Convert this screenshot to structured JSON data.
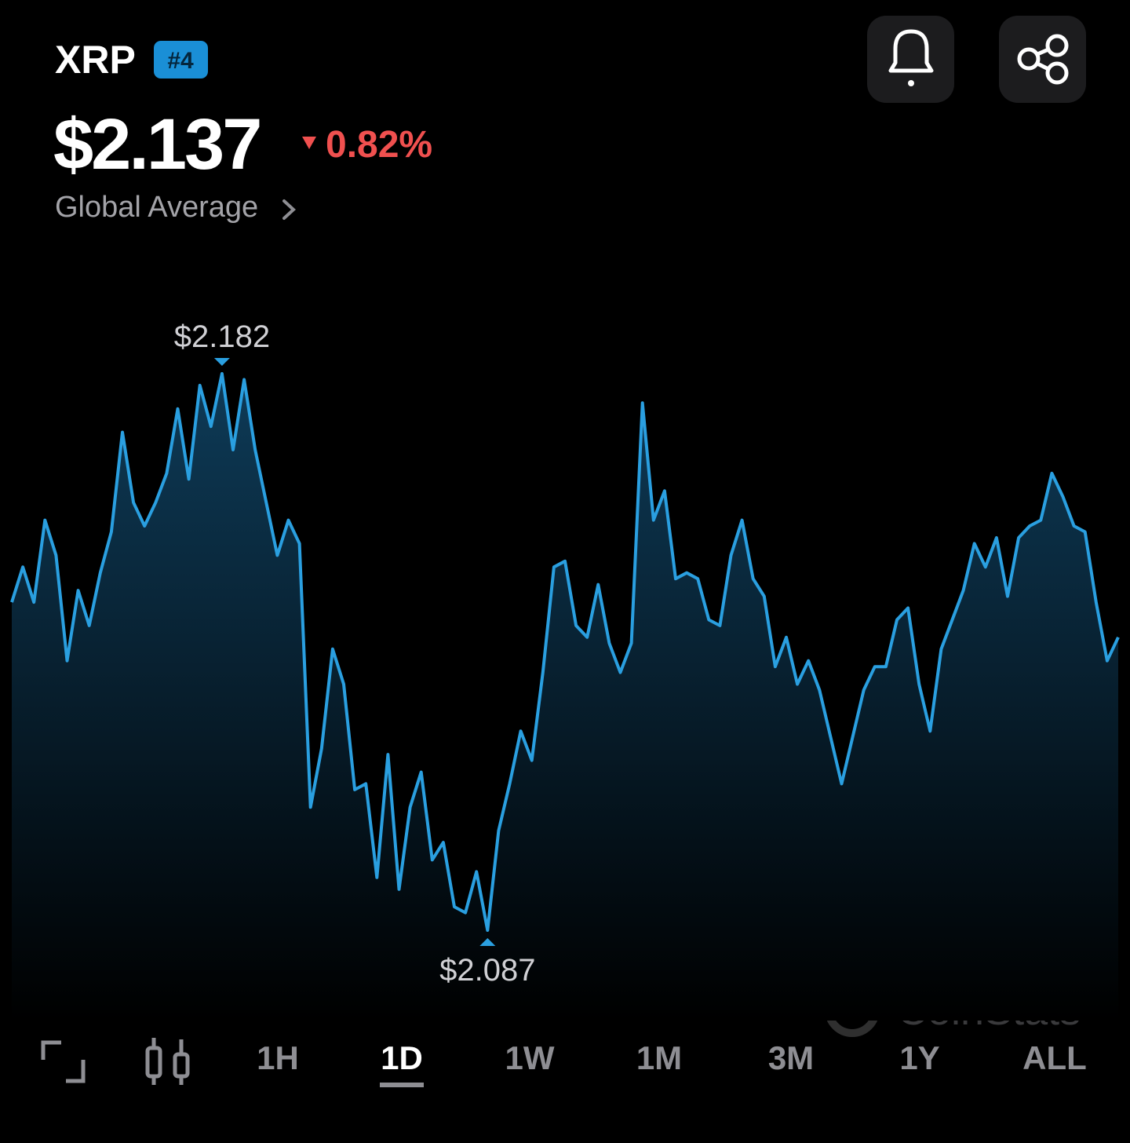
{
  "header": {
    "symbol": "XRP",
    "rank": "#4",
    "price": "$2.137",
    "change": "0.82%",
    "change_direction": "down",
    "source": "Global Average"
  },
  "chart_data": {
    "type": "area",
    "color": "#2a9fe0",
    "values": [
      2.143,
      2.149,
      2.143,
      2.157,
      2.151,
      2.133,
      2.145,
      2.139,
      2.148,
      2.155,
      2.172,
      2.16,
      2.156,
      2.16,
      2.165,
      2.176,
      2.164,
      2.18,
      2.173,
      2.182,
      2.169,
      2.181,
      2.169,
      2.16,
      2.151,
      2.157,
      2.153,
      2.108,
      2.118,
      2.135,
      2.129,
      2.111,
      2.112,
      2.096,
      2.117,
      2.094,
      2.108,
      2.114,
      2.099,
      2.102,
      2.091,
      2.09,
      2.097,
      2.087,
      2.104,
      2.112,
      2.121,
      2.116,
      2.131,
      2.149,
      2.15,
      2.139,
      2.137,
      2.146,
      2.136,
      2.131,
      2.136,
      2.177,
      2.157,
      2.162,
      2.147,
      2.148,
      2.147,
      2.14,
      2.139,
      2.151,
      2.157,
      2.147,
      2.144,
      2.132,
      2.137,
      2.129,
      2.133,
      2.128,
      2.12,
      2.112,
      2.12,
      2.128,
      2.132,
      2.132,
      2.14,
      2.142,
      2.129,
      2.121,
      2.135,
      2.14,
      2.145,
      2.153,
      2.149,
      2.154,
      2.144,
      2.154,
      2.156,
      2.157,
      2.165,
      2.161,
      2.156,
      2.155,
      2.143,
      2.133,
      2.137
    ],
    "high": {
      "value": 2.182,
      "label": "$2.182"
    },
    "low": {
      "value": 2.087,
      "label": "$2.087"
    },
    "watermark": "CoinStats"
  },
  "timeframes": {
    "options": [
      "1H",
      "1D",
      "1W",
      "1M",
      "3M",
      "1Y",
      "ALL"
    ],
    "selected": "1D"
  }
}
